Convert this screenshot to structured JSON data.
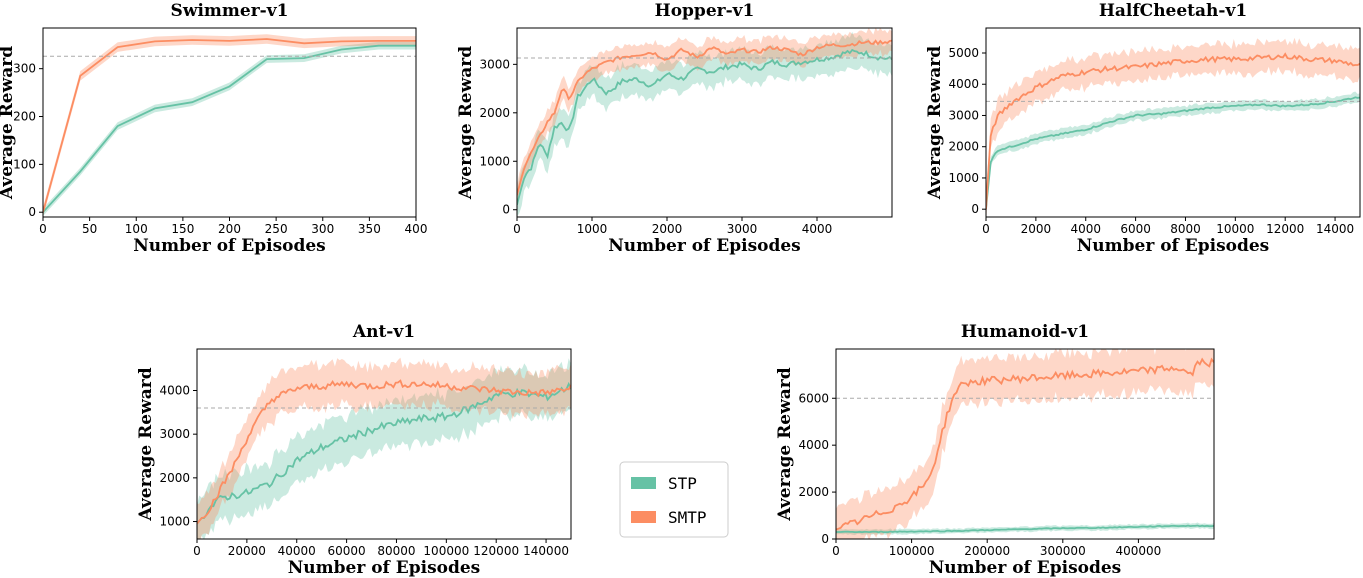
{
  "colors": {
    "STP": "#66c2a5",
    "SMTP": "#fc8d62",
    "reference": "#aaaaaa"
  },
  "legend": {
    "entries": [
      {
        "name": "STP",
        "color": "#66c2a5"
      },
      {
        "name": "SMTP",
        "color": "#fc8d62"
      }
    ]
  },
  "chart_data": [
    {
      "type": "line",
      "title": "Swimmer-v1",
      "xlabel": "Number of Episodes",
      "ylabel": "Average Reward",
      "xlim": [
        0,
        400
      ],
      "ylim": [
        -10,
        385
      ],
      "xticks": [
        0,
        50,
        100,
        150,
        200,
        250,
        300,
        350,
        400
      ],
      "yticks": [
        0,
        100,
        200,
        300
      ],
      "reference": 326,
      "series": [
        {
          "name": "STP",
          "x": [
            0,
            40,
            80,
            120,
            160,
            200,
            240,
            280,
            320,
            360,
            400
          ],
          "values": [
            0,
            85,
            180,
            217,
            230,
            263,
            320,
            322,
            340,
            348,
            348
          ],
          "band": 8
        },
        {
          "name": "SMTP",
          "x": [
            0,
            40,
            80,
            120,
            160,
            200,
            240,
            280,
            320,
            360,
            400
          ],
          "values": [
            0,
            285,
            345,
            357,
            360,
            358,
            362,
            353,
            357,
            358,
            358
          ],
          "band": 10
        }
      ]
    },
    {
      "type": "line",
      "title": "Hopper-v1",
      "xlabel": "Number of Episodes",
      "ylabel": "Average Reward",
      "xlim": [
        0,
        5000
      ],
      "ylim": [
        -150,
        3750
      ],
      "xticks": [
        0,
        1000,
        2000,
        3000,
        4000
      ],
      "yticks": [
        0,
        1000,
        2000,
        3000
      ],
      "reference": 3130,
      "series": [
        {
          "name": "STP",
          "x": [
            0,
            100,
            200,
            300,
            400,
            500,
            600,
            700,
            800,
            900,
            1000,
            1200,
            1400,
            1600,
            1800,
            2000,
            2200,
            2400,
            2600,
            2800,
            3000,
            3200,
            3400,
            3600,
            3800,
            4000,
            4200,
            4400,
            4600,
            4800,
            5000
          ],
          "values": [
            100,
            700,
            900,
            1400,
            1100,
            1700,
            1800,
            1600,
            2300,
            2500,
            2700,
            2400,
            2650,
            2700,
            2550,
            2800,
            2700,
            2900,
            2850,
            2950,
            3000,
            2900,
            3050,
            3000,
            3050,
            3100,
            3150,
            3250,
            3250,
            3150,
            3100
          ],
          "band": 300
        },
        {
          "name": "SMTP",
          "x": [
            0,
            100,
            200,
            300,
            400,
            500,
            600,
            700,
            800,
            900,
            1000,
            1200,
            1400,
            1600,
            1800,
            2000,
            2200,
            2400,
            2600,
            2800,
            3000,
            3200,
            3400,
            3600,
            3800,
            4000,
            4200,
            4400,
            4600,
            4800,
            5000
          ],
          "values": [
            300,
            900,
            1200,
            1500,
            1800,
            2000,
            2500,
            2300,
            2600,
            2800,
            2900,
            3050,
            3150,
            3200,
            3250,
            3100,
            3300,
            3150,
            3350,
            3200,
            3300,
            3250,
            3350,
            3300,
            3200,
            3350,
            3400,
            3400,
            3450,
            3450,
            3480
          ],
          "band": 220
        }
      ]
    },
    {
      "type": "line",
      "title": "HalfCheetah-v1",
      "xlabel": "Number of Episodes",
      "ylabel": "Average Reward",
      "xlim": [
        0,
        15000
      ],
      "ylim": [
        -250,
        5800
      ],
      "xticks": [
        0,
        2000,
        4000,
        6000,
        8000,
        10000,
        12000,
        14000
      ],
      "yticks": [
        0,
        1000,
        2000,
        3000,
        4000,
        5000
      ],
      "reference": 3450,
      "series": [
        {
          "name": "STP",
          "x": [
            0,
            200,
            500,
            1000,
            2000,
            3000,
            4000,
            5000,
            6000,
            7000,
            8000,
            9000,
            10000,
            11000,
            12000,
            13000,
            14000,
            15000
          ],
          "values": [
            0,
            1600,
            1900,
            2000,
            2250,
            2400,
            2550,
            2800,
            3000,
            3050,
            3150,
            3250,
            3300,
            3350,
            3300,
            3350,
            3450,
            3600
          ],
          "band": 150
        },
        {
          "name": "SMTP",
          "x": [
            0,
            200,
            500,
            1000,
            2000,
            3000,
            4000,
            5000,
            6000,
            7000,
            8000,
            9000,
            10000,
            11000,
            12000,
            13000,
            14000,
            15000
          ],
          "values": [
            0,
            2500,
            3000,
            3400,
            3900,
            4250,
            4400,
            4500,
            4550,
            4650,
            4750,
            4800,
            4800,
            4850,
            4900,
            4800,
            4750,
            4600
          ],
          "band": 450
        }
      ]
    },
    {
      "type": "line",
      "title": "Ant-v1",
      "xlabel": "Number of Episodes",
      "ylabel": "Average Reward",
      "xlim": [
        0,
        150000
      ],
      "ylim": [
        600,
        4950
      ],
      "xticks": [
        0,
        20000,
        40000,
        60000,
        80000,
        100000,
        120000,
        140000
      ],
      "yticks": [
        1000,
        2000,
        3000,
        4000
      ],
      "reference": 3600,
      "series": [
        {
          "name": "STP",
          "x": [
            0,
            5000,
            10000,
            20000,
            30000,
            40000,
            50000,
            60000,
            70000,
            80000,
            90000,
            100000,
            110000,
            120000,
            130000,
            140000,
            150000
          ],
          "values": [
            950,
            1300,
            1550,
            1650,
            1900,
            2400,
            2700,
            2900,
            3100,
            3250,
            3350,
            3400,
            3600,
            3900,
            3950,
            3850,
            4100
          ],
          "band": 500
        },
        {
          "name": "SMTP",
          "x": [
            0,
            5000,
            10000,
            15000,
            20000,
            25000,
            30000,
            40000,
            50000,
            60000,
            70000,
            80000,
            90000,
            100000,
            110000,
            120000,
            130000,
            140000,
            150000
          ],
          "values": [
            950,
            1300,
            1800,
            2300,
            2900,
            3400,
            3800,
            4050,
            4100,
            4150,
            4100,
            4150,
            4150,
            4100,
            4050,
            4000,
            3950,
            3950,
            4050
          ],
          "band": 450
        }
      ]
    },
    {
      "type": "line",
      "title": "Humanoid-v1",
      "xlabel": "Number of Episodes",
      "ylabel": "Average Reward",
      "xlim": [
        0,
        500000
      ],
      "ylim": [
        0,
        8100
      ],
      "xticks": [
        0,
        100000,
        200000,
        300000,
        400000
      ],
      "yticks": [
        0,
        2000,
        4000,
        6000
      ],
      "reference": 6000,
      "series": [
        {
          "name": "STP",
          "x": [
            0,
            50000,
            100000,
            150000,
            200000,
            250000,
            300000,
            350000,
            400000,
            450000,
            500000
          ],
          "values": [
            300,
            300,
            320,
            340,
            380,
            420,
            460,
            480,
            520,
            560,
            560
          ],
          "band": 100
        },
        {
          "name": "SMTP",
          "x": [
            0,
            25000,
            50000,
            75000,
            100000,
            120000,
            130000,
            140000,
            150000,
            160000,
            170000,
            200000,
            250000,
            300000,
            350000,
            400000,
            450000,
            470000,
            480000,
            500000
          ],
          "values": [
            400,
            700,
            1000,
            1300,
            1800,
            2400,
            3200,
            4500,
            5600,
            6400,
            6650,
            6750,
            6850,
            6950,
            7050,
            7150,
            7300,
            7000,
            7550,
            7500
          ],
          "band": 900
        }
      ]
    }
  ]
}
